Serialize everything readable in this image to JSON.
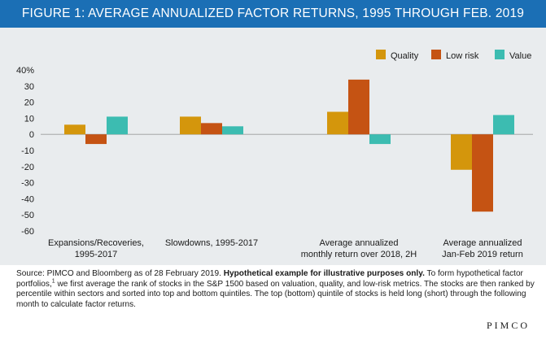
{
  "title": "FIGURE 1: AVERAGE ANNUALIZED FACTOR RETURNS, 1995 THROUGH FEB. 2019",
  "chart_data": {
    "type": "bar",
    "categories": [
      [
        "Expansions/Recoveries,",
        "1995-2017"
      ],
      [
        "Slowdowns, 1995-2017"
      ],
      [
        "Average annualized",
        "monthly return over 2018, 2H"
      ],
      [
        "Average annualized",
        "Jan-Feb 2019 return"
      ]
    ],
    "series": [
      {
        "name": "Quality",
        "color": "#d4960c",
        "values": [
          6,
          11,
          14,
          -22
        ]
      },
      {
        "name": "Low risk",
        "color": "#c55313",
        "values": [
          -6,
          7,
          34,
          -48
        ]
      },
      {
        "name": "Value",
        "color": "#3cbcb1",
        "values": [
          11,
          5,
          -6,
          12
        ]
      }
    ],
    "ylim": [
      -60,
      40
    ],
    "yticks": [
      "40%",
      "30",
      "20",
      "10",
      "0",
      "-10",
      "-20",
      "-30",
      "-40",
      "-50",
      "-60"
    ],
    "legend_position": "top-right",
    "grid": false
  },
  "source": {
    "prefix": "Source: PIMCO and Bloomberg as of 28 February 2019. ",
    "bold": "Hypothetical example for illustrative purposes only.",
    "middle": " To form hypothetical factor portfolios,",
    "footnote_mark": "1",
    "rest": " we first average the rank of stocks in the S&P 1500 based on valuation, quality, and low-risk metrics. The stocks are then ranked by percentile within sectors and sorted into top and bottom quintiles. The top (bottom) quintile of stocks is held long (short) through the following month to calculate factor returns."
  },
  "logo": "PIMCO"
}
